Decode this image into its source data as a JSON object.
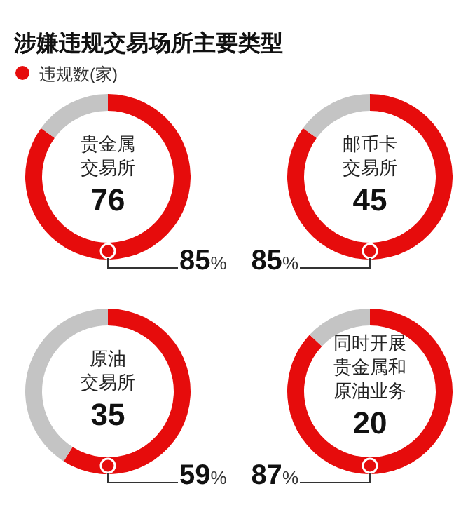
{
  "chart_data": [
    {
      "type": "donut",
      "title": "涉嫌违规交易场所主要类型",
      "legend": "top left",
      "categories": [
        "违规数(家)",
        null
      ],
      "values": [
        85,
        15
      ],
      "colors": [
        "#e60c0c",
        "#c4c4c4"
      ],
      "value_labels": [
        "85%",
        null
      ],
      "annotations": [
        "贵金属",
        "交易所",
        "76"
      ]
    },
    {
      "type": "donut",
      "categories": [
        null,
        null
      ],
      "values": [
        85,
        15
      ],
      "colors": [
        "#e60c0c",
        "#c4c4c4"
      ],
      "value_labels": [
        "85%",
        null
      ],
      "annotations": [
        "邮币卡",
        "交易所",
        "45"
      ]
    },
    {
      "type": "donut",
      "categories": [
        null,
        null
      ],
      "values": [
        59,
        41
      ],
      "colors": [
        "#e60c0c",
        "#c4c4c4"
      ],
      "value_labels": [
        "59%",
        null
      ],
      "annotations": [
        "原油",
        "交易所",
        "35"
      ]
    },
    {
      "type": "donut",
      "categories": [
        null,
        null
      ],
      "values": [
        87,
        13
      ],
      "colors": [
        "#e60c0c",
        "#c4c4c4"
      ],
      "value_labels": [
        "87%",
        null
      ],
      "annotations": [
        "同时开展",
        "贵金属和",
        "原油业务",
        "20"
      ]
    }
  ]
}
